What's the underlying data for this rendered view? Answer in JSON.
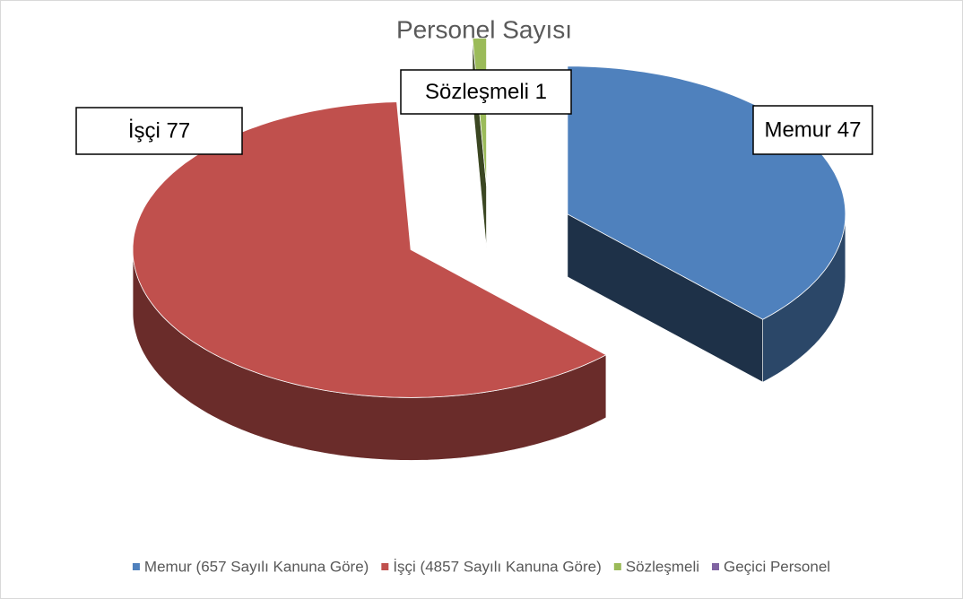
{
  "chart_data": {
    "type": "pie",
    "title": "Personel Sayısı",
    "categories": [
      "Memur (657 Sayılı Kanuna Göre)",
      "İşçi (4857 Sayılı Kanuna Göre)",
      "Sözleşmeli",
      "Geçici Personel"
    ],
    "values": [
      47,
      77,
      1,
      0
    ],
    "value_labels": [
      "Memur 47",
      "İşçi 77",
      "Sözleşmeli 1",
      null
    ],
    "colors": [
      "#4f81bd",
      "#c0504d",
      "#9bbb59",
      "#8064a2"
    ],
    "legend": "bottom"
  }
}
